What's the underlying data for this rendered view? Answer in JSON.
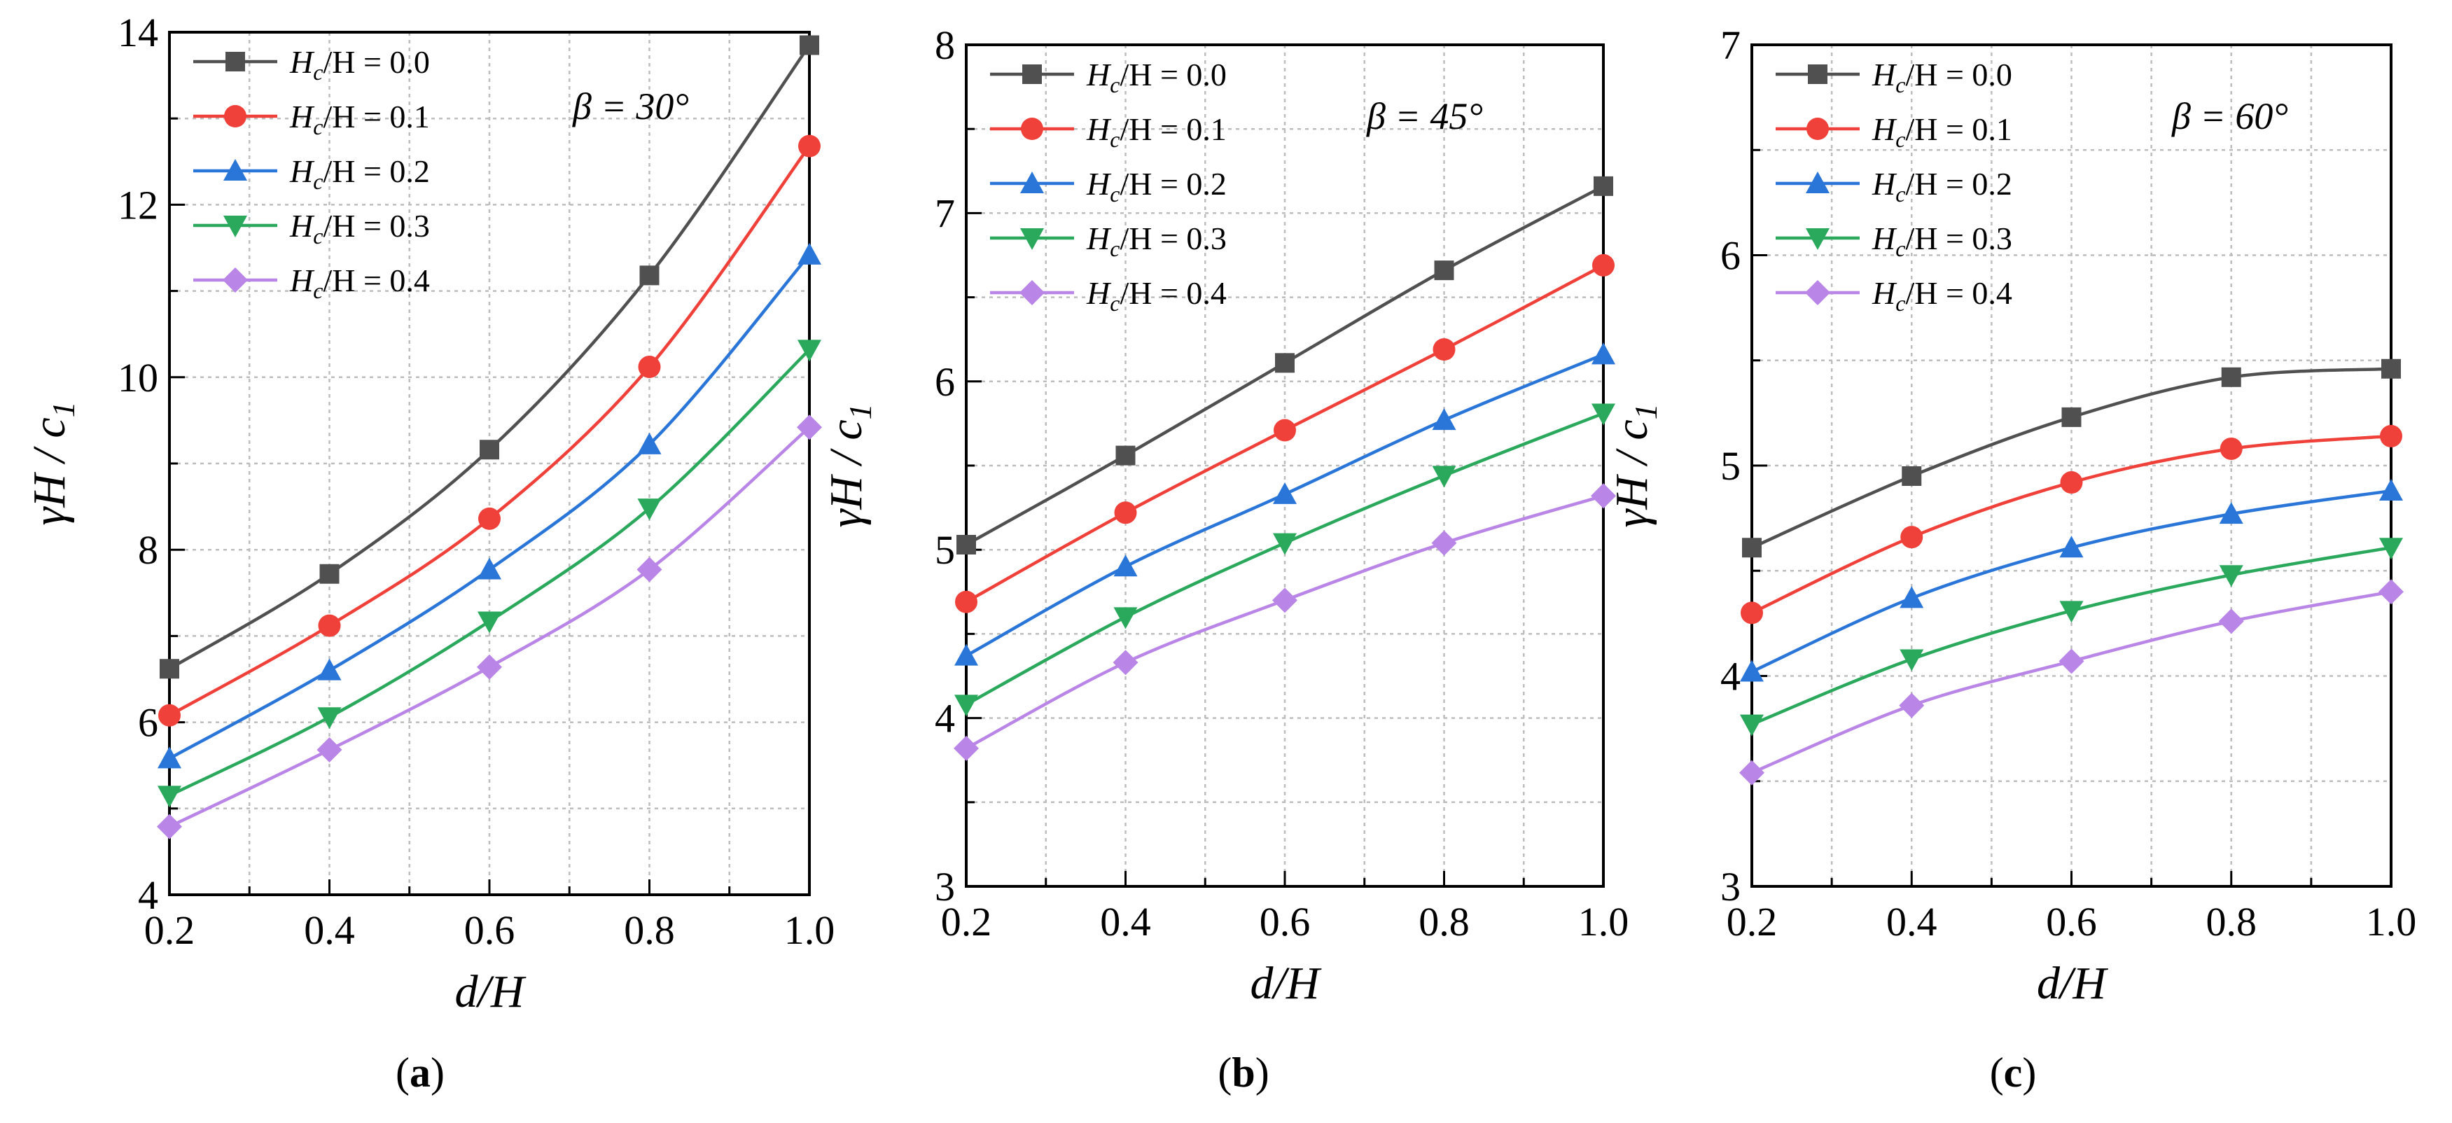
{
  "chart_data": [
    {
      "type": "line",
      "panel_label": "a",
      "annotation": "β = 30°",
      "xlabel": "d/H",
      "ylabel": "γH / c",
      "ylabel_sub": "1",
      "x": [
        0.2,
        0.4,
        0.6,
        0.8,
        1.0
      ],
      "x_tick_labels": [
        "0.2",
        "0.4",
        "0.6",
        "0.8",
        "1.0"
      ],
      "xlim": [
        0.2,
        1.0
      ],
      "ylim": [
        4,
        14
      ],
      "y_ticks": [
        4,
        6,
        8,
        10,
        12,
        14
      ],
      "y_tick_labels": [
        "4",
        "6",
        "8",
        "10",
        "12",
        "14"
      ],
      "grid": true,
      "legend_position": "top-left",
      "series": [
        {
          "name": "Hc/H = 0.0",
          "values": [
            6.62,
            7.72,
            9.16,
            11.18,
            13.85
          ]
        },
        {
          "name": "Hc/H = 0.1",
          "values": [
            6.08,
            7.12,
            8.36,
            10.12,
            12.68
          ]
        },
        {
          "name": "Hc/H = 0.2",
          "values": [
            5.58,
            6.6,
            7.77,
            9.22,
            11.42
          ]
        },
        {
          "name": "Hc/H = 0.3",
          "values": [
            5.15,
            6.06,
            7.17,
            8.48,
            10.32
          ]
        },
        {
          "name": "Hc/H = 0.4",
          "values": [
            4.79,
            5.68,
            6.64,
            7.77,
            9.42
          ]
        }
      ]
    },
    {
      "type": "line",
      "panel_label": "b",
      "annotation": "β = 45°",
      "xlabel": "d/H",
      "ylabel": "γH / c",
      "ylabel_sub": "1",
      "x": [
        0.2,
        0.4,
        0.6,
        0.8,
        1.0
      ],
      "x_tick_labels": [
        "0.2",
        "0.4",
        "0.6",
        "0.8",
        "1.0"
      ],
      "xlim": [
        0.2,
        1.0
      ],
      "ylim": [
        3,
        8
      ],
      "y_ticks": [
        3,
        4,
        5,
        6,
        7,
        8
      ],
      "y_tick_labels": [
        "3",
        "4",
        "5",
        "6",
        "7",
        "8"
      ],
      "grid": true,
      "legend_position": "top-left",
      "series": [
        {
          "name": "Hc/H = 0.0",
          "values": [
            5.03,
            5.56,
            6.11,
            6.66,
            7.16
          ]
        },
        {
          "name": "Hc/H = 0.1",
          "values": [
            4.69,
            5.22,
            5.71,
            6.19,
            6.69
          ]
        },
        {
          "name": "Hc/H = 0.2",
          "values": [
            4.37,
            4.9,
            5.33,
            5.77,
            6.16
          ]
        },
        {
          "name": "Hc/H = 0.3",
          "values": [
            4.08,
            4.6,
            5.04,
            5.44,
            5.81
          ]
        },
        {
          "name": "Hc/H = 0.4",
          "values": [
            3.82,
            4.33,
            4.7,
            5.04,
            5.32
          ]
        }
      ]
    },
    {
      "type": "line",
      "panel_label": "c",
      "annotation": "β = 60°",
      "xlabel": "d/H",
      "ylabel": "γH / c",
      "ylabel_sub": "1",
      "x": [
        0.2,
        0.4,
        0.6,
        0.8,
        1.0
      ],
      "x_tick_labels": [
        "0.2",
        "0.4",
        "0.6",
        "0.8",
        "1.0"
      ],
      "xlim": [
        0.2,
        1.0
      ],
      "ylim": [
        3,
        7
      ],
      "y_ticks": [
        3,
        4,
        5,
        6,
        7
      ],
      "y_tick_labels": [
        "3",
        "4",
        "5",
        "6",
        "7"
      ],
      "grid": true,
      "legend_position": "top-left",
      "series": [
        {
          "name": "Hc/H = 0.0",
          "values": [
            4.61,
            4.95,
            5.23,
            5.42,
            5.46
          ]
        },
        {
          "name": "Hc/H = 0.1",
          "values": [
            4.3,
            4.66,
            4.92,
            5.08,
            5.14
          ]
        },
        {
          "name": "Hc/H = 0.2",
          "values": [
            4.02,
            4.37,
            4.61,
            4.77,
            4.88
          ]
        },
        {
          "name": "Hc/H = 0.3",
          "values": [
            3.77,
            4.08,
            4.31,
            4.48,
            4.61
          ]
        },
        {
          "name": "Hc/H = 0.4",
          "values": [
            3.54,
            3.86,
            4.07,
            4.26,
            4.4
          ]
        }
      ]
    }
  ],
  "series_styles": [
    {
      "color": "#505050",
      "marker": "square",
      "legend_main": "H",
      "legend_sub": "c",
      "legend_rest": "/H = 0.0"
    },
    {
      "color": "#f0403a",
      "marker": "circle",
      "legend_main": "H",
      "legend_sub": "c",
      "legend_rest": "/H = 0.1"
    },
    {
      "color": "#2a76d8",
      "marker": "triangle-up",
      "legend_main": "H",
      "legend_sub": "c",
      "legend_rest": "/H = 0.2"
    },
    {
      "color": "#2aa85c",
      "marker": "triangle-down",
      "legend_main": "H",
      "legend_sub": "c",
      "legend_rest": "/H = 0.3"
    },
    {
      "color": "#b985e6",
      "marker": "diamond",
      "legend_main": "H",
      "legend_sub": "c",
      "legend_rest": "/H = 0.4"
    }
  ]
}
